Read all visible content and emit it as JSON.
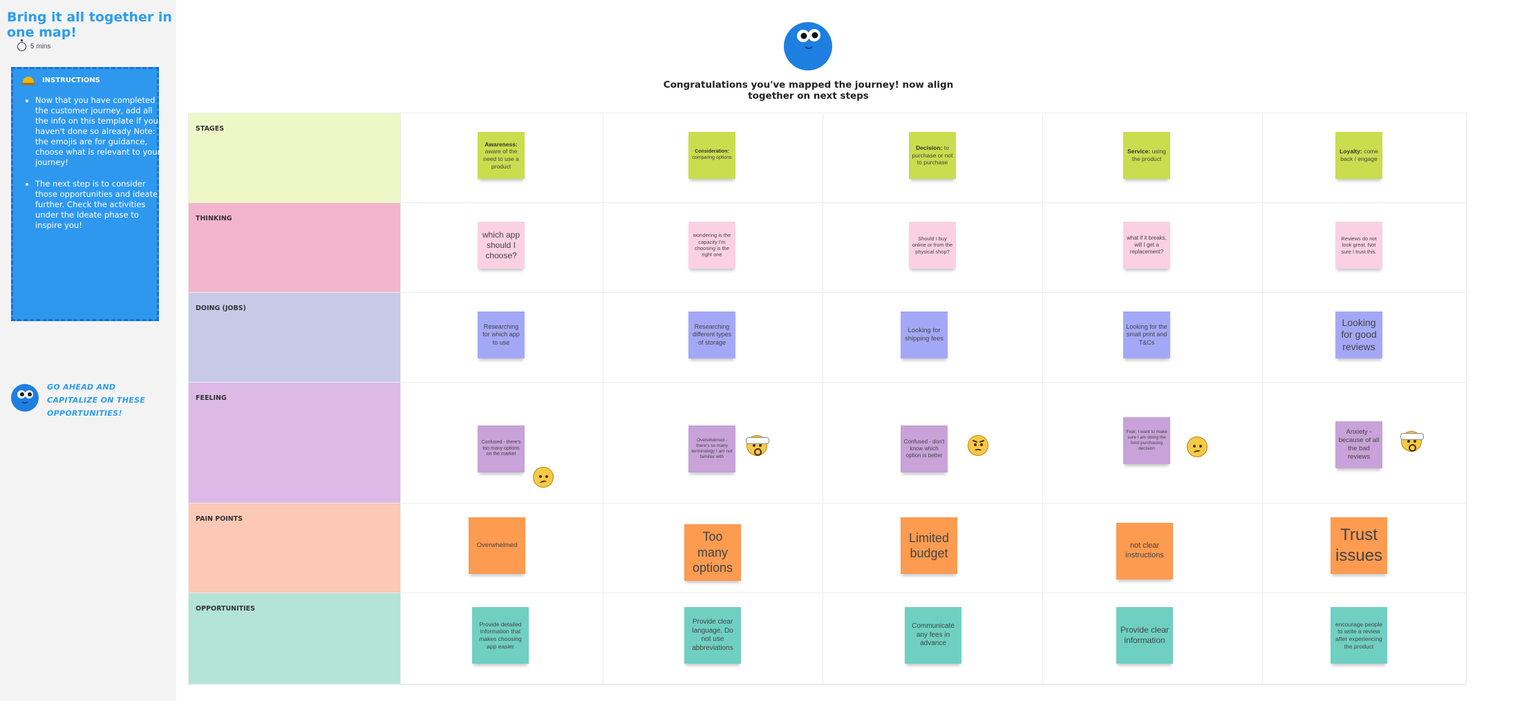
{
  "sidebar": {
    "title": "Bring it all together in one map!",
    "timer": "5 mins",
    "instructions_heading": "INSTRUCTIONS",
    "instructions": [
      "Now that you have completed the customer journey, add all the info on this template if you haven't done so already Note: the emojis are for guidance, choose what is relevant to your journey!",
      "The next step is to consider those opportunities and ideate further. Check the activities under the Ideate phase to inspire you!"
    ],
    "cta": "GO AHEAD AND CAPITALIZE ON THESE OPPORTUNITIES!"
  },
  "canvas": {
    "title": "Congratulations you've mapped the journey! now align together on next steps"
  },
  "colors": {
    "stages": "#eef7c6",
    "thinking": "#f3b5cc",
    "doing": "#c7c9e7",
    "feeling": "#dcb9e6",
    "pain": "#fbc9b5",
    "opportunities": "#b4e4d6",
    "stage_note": "#c9de4e",
    "thinking_note": "#fbd1e2",
    "doing_note": "#a3a8f6",
    "feeling_note": "#c8a2d8",
    "pain_note": "#fd9b51",
    "opp_note": "#6fd0c2"
  },
  "rows": [
    {
      "label": "STAGES",
      "notes": [
        {
          "bold": "Awareness:",
          "text": "aware of the need to use a product"
        },
        {
          "bold": "Consideration:",
          "text": "comparing options"
        },
        {
          "bold": "Decision:",
          "text": "to purchase or not to purchase"
        },
        {
          "bold": "Service:",
          "text": "using the product"
        },
        {
          "bold": "Loyalty:",
          "text": "come back / engage"
        }
      ]
    },
    {
      "label": "THINKING",
      "notes": [
        {
          "text": "which app should I choose?"
        },
        {
          "text": "wondering is the capacity I'm choosing is the right one"
        },
        {
          "text": "Should I buy online or from the physical shop?"
        },
        {
          "text": "what if it breaks, will I get a replacement?"
        },
        {
          "text": "Reviews do not look great. Not sure I trust this."
        }
      ]
    },
    {
      "label": "DOING (JOBS)",
      "notes": [
        {
          "text": "Researching for which app to use"
        },
        {
          "text": "Researching different types of storage"
        },
        {
          "text": "Looking for shipping fees"
        },
        {
          "text": "Looking for the small print and T&Cs"
        },
        {
          "text": "Looking for good reviews"
        }
      ]
    },
    {
      "label": "FEELING",
      "notes": [
        {
          "text": "Confused - there's too many options on the market",
          "emoji": "confused-emoji-icon"
        },
        {
          "text": "Overwhelmed - there's so many terminology I am not familiar with",
          "emoji": "shocked-emoji-icon"
        },
        {
          "text": "Confused - don't know which option is better",
          "emoji": "angry-emoji-icon"
        },
        {
          "text": "Fear: I want to make sure I am doing the best purchasing decision",
          "emoji": "confused-emoji-icon"
        },
        {
          "text": "Anxiety - because of all the bad reviews",
          "emoji": "shocked-emoji-icon"
        }
      ]
    },
    {
      "label": "PAIN POINTS",
      "notes": [
        {
          "text": "Overwhelmed"
        },
        {
          "text": "Too many options"
        },
        {
          "text": "Limited budget"
        },
        {
          "text": "not clear instructions"
        },
        {
          "text": "Trust issues"
        }
      ]
    },
    {
      "label": "OPPORTUNITIES",
      "notes": [
        {
          "text": "Provide detailed information that makes choosing app easier"
        },
        {
          "text": "Provide clear language. Do not use abbreviations"
        },
        {
          "text": "Communicate any fees in advance"
        },
        {
          "text": "Provide clear information"
        },
        {
          "text": "encourage people to write a review after experiencing the product"
        }
      ]
    }
  ]
}
